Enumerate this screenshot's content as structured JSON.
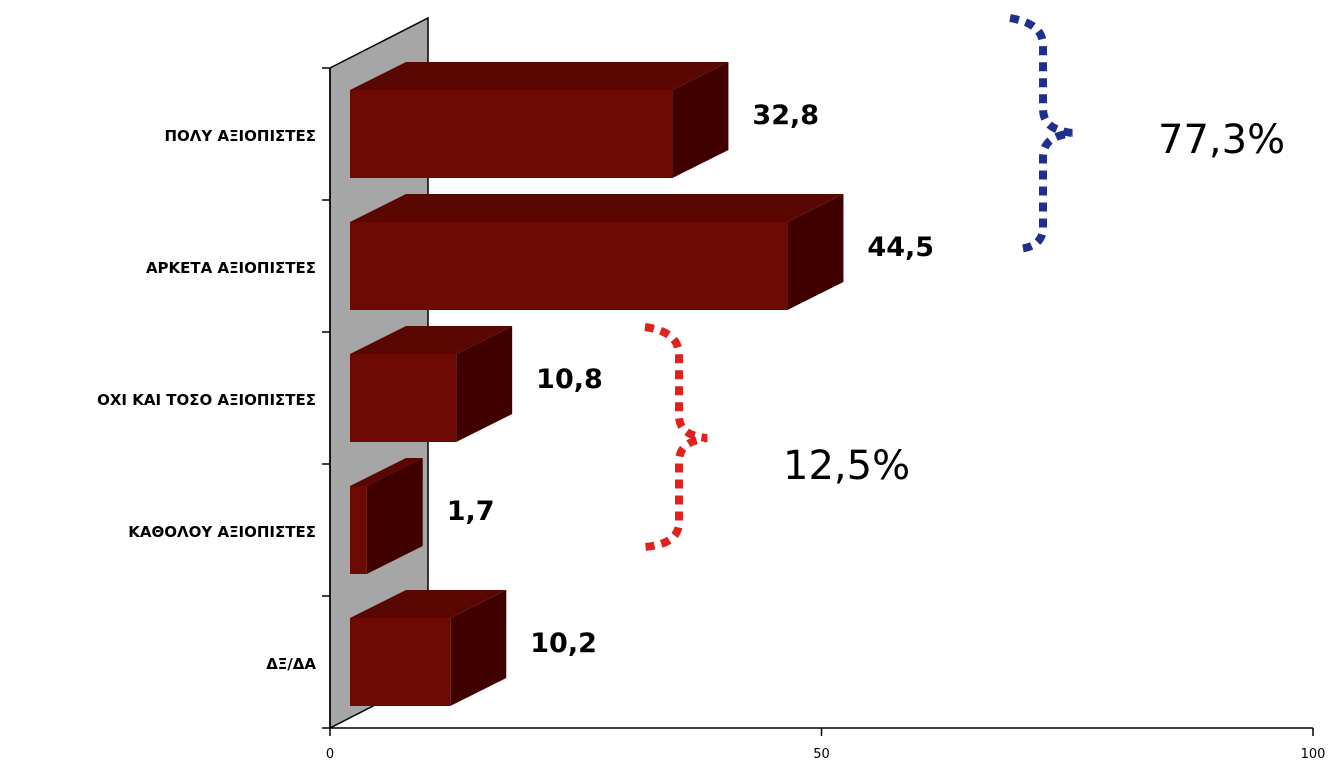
{
  "chart_data": {
    "type": "bar",
    "orientation": "horizontal",
    "style": "3d",
    "categories": [
      "ΠΟΛΥ ΑΞΙΟΠΙΣΤΕΣ",
      "ΑΡΚΕΤΑ ΑΞΙΟΠΙΣΤΕΣ",
      "ΟΧΙ ΚΑΙ ΤΟΣΟ ΑΞΙΟΠΙΣΤΕΣ",
      "ΚΑΘΟΛΟΥ ΑΞΙΟΠΙΣΤΕΣ",
      "ΔΞ/ΔΑ"
    ],
    "values": [
      32.8,
      44.5,
      10.8,
      1.7,
      10.2
    ],
    "value_labels": [
      "32,8",
      "44,5",
      "10,8",
      "1,7",
      "10,2"
    ],
    "xlim": [
      0,
      100
    ],
    "xticks": [
      0,
      50,
      100
    ],
    "xtick_labels": [
      "0",
      "50",
      "100"
    ],
    "grid": false,
    "colors": {
      "bar_front": "#6e0a04",
      "bar_top": "#5a0702",
      "bar_side": "#410000",
      "back_wall": "#a6a6a6"
    },
    "annotations": [
      {
        "text": "77,3%",
        "groups": [
          "ΠΟΛΥ ΑΞΙΟΠΙΣΤΕΣ",
          "ΑΡΚΕΤΑ ΑΞΙΟΠΙΣΤΕΣ"
        ],
        "bracket_color": "#1f2f8c"
      },
      {
        "text": "12,5%",
        "groups": [
          "ΟΧΙ ΚΑΙ ΤΟΣΟ ΑΞΙΟΠΙΣΤΕΣ",
          "ΚΑΘΟΛΟΥ ΑΞΙΟΠΙΣΤΕΣ"
        ],
        "bracket_color": "#e0211c"
      }
    ]
  }
}
